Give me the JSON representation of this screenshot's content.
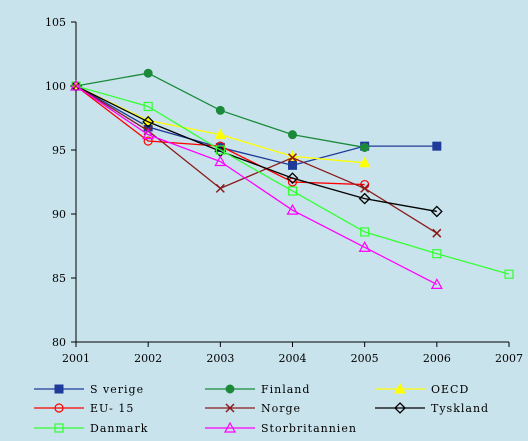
{
  "chart_data": {
    "type": "line",
    "title": "",
    "xlabel": "",
    "ylabel": "",
    "x": [
      2001,
      2002,
      2003,
      2004,
      2005,
      2006,
      2007
    ],
    "x_tick_labels": [
      "2001",
      "2002",
      "2003",
      "2004",
      "2005",
      "2006",
      "2007"
    ],
    "y_tick_labels": [
      "80",
      "85",
      "90",
      "95",
      "100",
      "105"
    ],
    "xlim": [
      2001,
      2007
    ],
    "ylim": [
      80,
      105
    ],
    "y_ticks": [
      80,
      85,
      90,
      95,
      100,
      105
    ],
    "grid": false,
    "background_color": "#c9e3ec",
    "legend_position": "bottom",
    "series": [
      {
        "name": "Sverige",
        "color": "#1f3b99",
        "marker": "square-filled",
        "points": [
          [
            2001,
            100
          ],
          [
            2002,
            96.8
          ],
          [
            2003,
            95.2
          ],
          [
            2004,
            93.8
          ],
          [
            2005,
            95.3
          ],
          [
            2006,
            95.3
          ]
        ]
      },
      {
        "name": "Finland",
        "color": "#1a8a3a",
        "marker": "circle-filled",
        "points": [
          [
            2001,
            100
          ],
          [
            2002,
            101.0
          ],
          [
            2003,
            98.1
          ],
          [
            2004,
            96.2
          ],
          [
            2005,
            95.2
          ]
        ]
      },
      {
        "name": "OECD",
        "color": "#ffff00",
        "marker": "triangle-filled",
        "points": [
          [
            2001,
            100
          ],
          [
            2002,
            97.3
          ],
          [
            2003,
            96.2
          ],
          [
            2004,
            94.5
          ],
          [
            2005,
            94.0
          ]
        ]
      },
      {
        "name": "EU-15",
        "color": "#ff0000",
        "marker": "circle-open",
        "points": [
          [
            2001,
            100
          ],
          [
            2002,
            95.7
          ],
          [
            2003,
            95.3
          ],
          [
            2004,
            92.5
          ],
          [
            2005,
            92.3
          ]
        ]
      },
      {
        "name": "Norge",
        "color": "#8b1a1a",
        "marker": "x",
        "points": [
          [
            2001,
            100
          ],
          [
            2002,
            96.5
          ],
          [
            2003,
            92.0
          ],
          [
            2004,
            94.4
          ],
          [
            2005,
            92.0
          ],
          [
            2006,
            88.5
          ]
        ]
      },
      {
        "name": "Tyskland",
        "color": "#000000",
        "marker": "diamond-open",
        "points": [
          [
            2001,
            100
          ],
          [
            2002,
            97.2
          ],
          [
            2003,
            94.9
          ],
          [
            2004,
            92.8
          ],
          [
            2005,
            91.2
          ],
          [
            2006,
            90.2
          ]
        ]
      },
      {
        "name": "Danmark",
        "color": "#33ff33",
        "marker": "square-open",
        "points": [
          [
            2001,
            100
          ],
          [
            2002,
            98.4
          ],
          [
            2003,
            95.0
          ],
          [
            2004,
            91.8
          ],
          [
            2005,
            88.6
          ],
          [
            2006,
            86.9
          ],
          [
            2007,
            85.3
          ]
        ]
      },
      {
        "name": "Storbritannien",
        "color": "#ff00ff",
        "marker": "triangle-open",
        "points": [
          [
            2001,
            100
          ],
          [
            2002,
            96.2
          ],
          [
            2003,
            94.1
          ],
          [
            2004,
            90.3
          ],
          [
            2005,
            87.4
          ],
          [
            2006,
            84.5
          ]
        ]
      }
    ],
    "legend": {
      "rows": [
        [
          {
            "label": "S verige",
            "series": 0
          },
          {
            "label": "Finland",
            "series": 1
          },
          {
            "label": "OECD",
            "series": 2
          }
        ],
        [
          {
            "label": "EU- 15",
            "series": 3
          },
          {
            "label": "Norge",
            "series": 4
          },
          {
            "label": "Tyskland",
            "series": 5
          }
        ],
        [
          {
            "label": "Danmark",
            "series": 6
          },
          {
            "label": "Storbritannien",
            "series": 7
          }
        ]
      ]
    }
  }
}
